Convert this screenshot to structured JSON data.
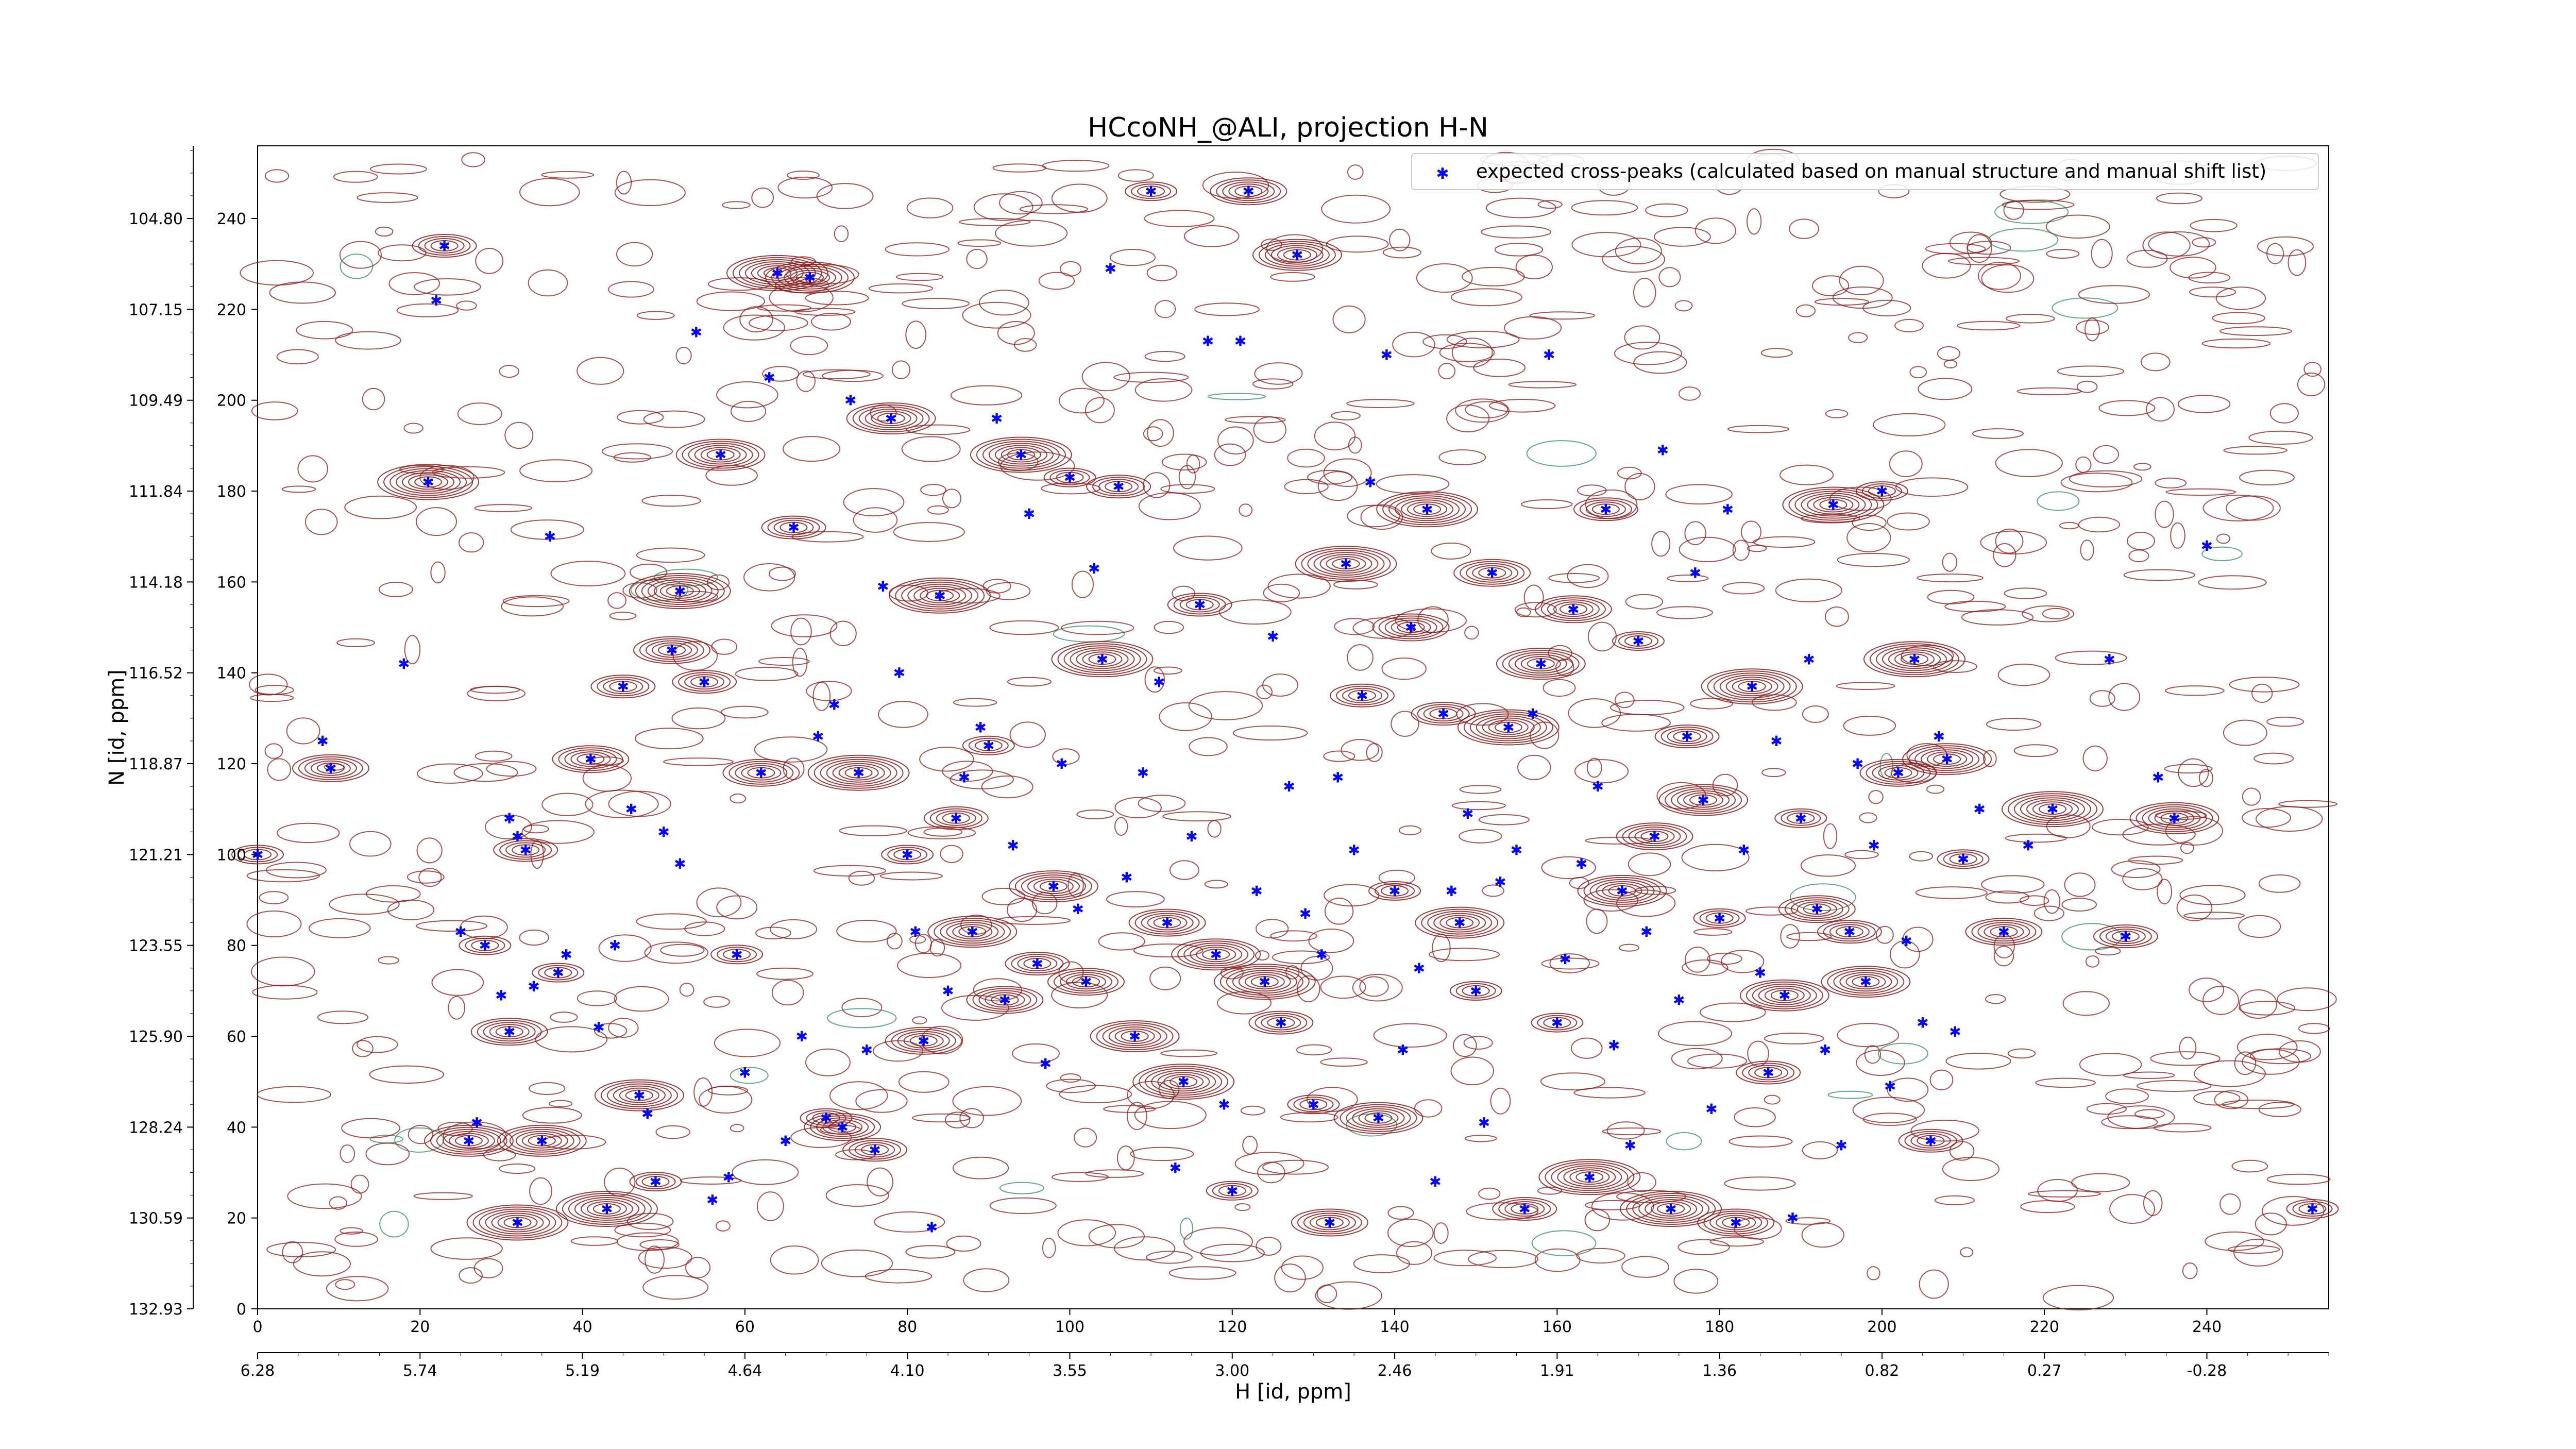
{
  "chart_data": {
    "type": "scatter",
    "title": "HCcoNH_@ALI, projection H-N",
    "xlabel": "H [id, ppm]",
    "ylabel": "N [id, ppm]",
    "x_index_ticks": [
      "0",
      "20",
      "40",
      "60",
      "80",
      "100",
      "120",
      "140",
      "160",
      "180",
      "200",
      "220",
      "240"
    ],
    "x_ppm_ticks": [
      "6.28",
      "5.74",
      "5.19",
      "4.64",
      "4.10",
      "3.55",
      "3.00",
      "2.46",
      "1.91",
      "1.36",
      "0.82",
      "0.27",
      "-0.28"
    ],
    "y_index_ticks": [
      "0",
      "20",
      "40",
      "60",
      "80",
      "100",
      "120",
      "140",
      "160",
      "180",
      "200",
      "220",
      "240"
    ],
    "y_ppm_ticks": [
      "132.93",
      "130.59",
      "128.24",
      "125.90",
      "123.55",
      "121.21",
      "118.87",
      "116.52",
      "114.18",
      "111.84",
      "109.49",
      "107.15",
      "104.80"
    ],
    "xlim": [
      0,
      255
    ],
    "ylim": [
      0,
      256
    ],
    "legend": {
      "entry": "expected cross-peaks (calculated based on manual structure and manual shift list)",
      "position": "top-right"
    },
    "colors": {
      "marker": "#0000ff",
      "positive_contour": "#8b1a1a",
      "negative_contour": "#2e8b57"
    },
    "series": [
      {
        "name": "expected cross-peaks (calculated based on manual structure and manual shift list)",
        "points": [
          [
            0,
            100
          ],
          [
            8,
            125
          ],
          [
            9,
            119
          ],
          [
            18,
            142
          ],
          [
            21,
            182
          ],
          [
            22,
            222
          ],
          [
            23,
            234
          ],
          [
            25,
            83
          ],
          [
            26,
            37
          ],
          [
            27,
            41
          ],
          [
            28,
            80
          ],
          [
            30,
            69
          ],
          [
            31,
            61
          ],
          [
            31,
            108
          ],
          [
            32,
            19
          ],
          [
            32,
            104
          ],
          [
            33,
            101
          ],
          [
            34,
            71
          ],
          [
            35,
            37
          ],
          [
            36,
            170
          ],
          [
            37,
            74
          ],
          [
            38,
            78
          ],
          [
            41,
            121
          ],
          [
            42,
            62
          ],
          [
            43,
            22
          ],
          [
            44,
            80
          ],
          [
            45,
            137
          ],
          [
            46,
            110
          ],
          [
            47,
            47
          ],
          [
            48,
            43
          ],
          [
            49,
            28
          ],
          [
            50,
            105
          ],
          [
            51,
            145
          ],
          [
            52,
            98
          ],
          [
            52,
            158
          ],
          [
            54,
            215
          ],
          [
            55,
            138
          ],
          [
            56,
            24
          ],
          [
            57,
            188
          ],
          [
            58,
            29
          ],
          [
            59,
            78
          ],
          [
            60,
            52
          ],
          [
            62,
            118
          ],
          [
            63,
            205
          ],
          [
            64,
            228
          ],
          [
            65,
            37
          ],
          [
            66,
            172
          ],
          [
            67,
            60
          ],
          [
            68,
            227
          ],
          [
            69,
            126
          ],
          [
            70,
            42
          ],
          [
            71,
            133
          ],
          [
            72,
            40
          ],
          [
            73,
            200
          ],
          [
            74,
            118
          ],
          [
            75,
            57
          ],
          [
            76,
            35
          ],
          [
            77,
            159
          ],
          [
            78,
            196
          ],
          [
            79,
            140
          ],
          [
            80,
            100
          ],
          [
            81,
            83
          ],
          [
            82,
            59
          ],
          [
            83,
            18
          ],
          [
            84,
            157
          ],
          [
            85,
            70
          ],
          [
            86,
            108
          ],
          [
            87,
            117
          ],
          [
            88,
            83
          ],
          [
            89,
            128
          ],
          [
            90,
            124
          ],
          [
            91,
            196
          ],
          [
            92,
            68
          ],
          [
            93,
            102
          ],
          [
            94,
            188
          ],
          [
            95,
            175
          ],
          [
            96,
            76
          ],
          [
            97,
            54
          ],
          [
            98,
            93
          ],
          [
            99,
            120
          ],
          [
            100,
            183
          ],
          [
            101,
            88
          ],
          [
            102,
            72
          ],
          [
            103,
            163
          ],
          [
            104,
            143
          ],
          [
            105,
            229
          ],
          [
            106,
            181
          ],
          [
            107,
            95
          ],
          [
            108,
            60
          ],
          [
            109,
            118
          ],
          [
            110,
            246
          ],
          [
            111,
            138
          ],
          [
            112,
            85
          ],
          [
            113,
            31
          ],
          [
            114,
            50
          ],
          [
            115,
            104
          ],
          [
            116,
            155
          ],
          [
            117,
            213
          ],
          [
            118,
            78
          ],
          [
            119,
            45
          ],
          [
            120,
            26
          ],
          [
            121,
            213
          ],
          [
            122,
            246
          ],
          [
            123,
            92
          ],
          [
            124,
            72
          ],
          [
            125,
            148
          ],
          [
            126,
            63
          ],
          [
            127,
            115
          ],
          [
            128,
            232
          ],
          [
            129,
            87
          ],
          [
            130,
            45
          ],
          [
            131,
            78
          ],
          [
            132,
            19
          ],
          [
            133,
            117
          ],
          [
            134,
            164
          ],
          [
            135,
            101
          ],
          [
            136,
            135
          ],
          [
            137,
            182
          ],
          [
            138,
            42
          ],
          [
            139,
            210
          ],
          [
            140,
            92
          ],
          [
            141,
            57
          ],
          [
            142,
            150
          ],
          [
            143,
            75
          ],
          [
            144,
            176
          ],
          [
            145,
            28
          ],
          [
            146,
            131
          ],
          [
            147,
            92
          ],
          [
            148,
            85
          ],
          [
            149,
            109
          ],
          [
            150,
            70
          ],
          [
            151,
            41
          ],
          [
            152,
            162
          ],
          [
            153,
            94
          ],
          [
            154,
            128
          ],
          [
            155,
            101
          ],
          [
            156,
            22
          ],
          [
            157,
            131
          ],
          [
            158,
            142
          ],
          [
            159,
            210
          ],
          [
            160,
            63
          ],
          [
            161,
            77
          ],
          [
            162,
            154
          ],
          [
            163,
            98
          ],
          [
            164,
            29
          ],
          [
            165,
            115
          ],
          [
            166,
            176
          ],
          [
            167,
            58
          ],
          [
            168,
            92
          ],
          [
            169,
            36
          ],
          [
            170,
            147
          ],
          [
            171,
            83
          ],
          [
            172,
            104
          ],
          [
            173,
            189
          ],
          [
            174,
            22
          ],
          [
            175,
            68
          ],
          [
            176,
            126
          ],
          [
            177,
            162
          ],
          [
            178,
            112
          ],
          [
            179,
            44
          ],
          [
            180,
            86
          ],
          [
            181,
            176
          ],
          [
            182,
            19
          ],
          [
            183,
            101
          ],
          [
            184,
            137
          ],
          [
            185,
            74
          ],
          [
            186,
            52
          ],
          [
            187,
            125
          ],
          [
            188,
            69
          ],
          [
            189,
            20
          ],
          [
            190,
            108
          ],
          [
            191,
            143
          ],
          [
            192,
            88
          ],
          [
            193,
            57
          ],
          [
            194,
            177
          ],
          [
            195,
            36
          ],
          [
            196,
            83
          ],
          [
            197,
            120
          ],
          [
            198,
            72
          ],
          [
            199,
            102
          ],
          [
            200,
            180
          ],
          [
            201,
            49
          ],
          [
            202,
            118
          ],
          [
            203,
            81
          ],
          [
            204,
            143
          ],
          [
            205,
            63
          ],
          [
            206,
            37
          ],
          [
            207,
            126
          ],
          [
            208,
            121
          ],
          [
            209,
            61
          ],
          [
            210,
            99
          ],
          [
            212,
            110
          ],
          [
            215,
            83
          ],
          [
            218,
            102
          ],
          [
            221,
            110
          ],
          [
            228,
            143
          ],
          [
            230,
            82
          ],
          [
            234,
            117
          ],
          [
            236,
            108
          ],
          [
            240,
            168
          ],
          [
            253,
            22
          ]
        ]
      }
    ]
  }
}
